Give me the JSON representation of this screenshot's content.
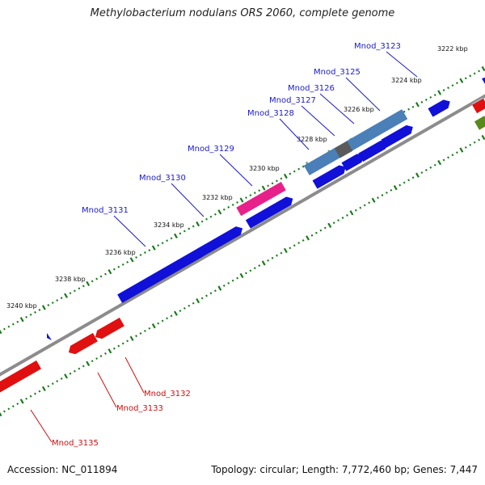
{
  "title": "Methylobacterium nodulans ORS 2060, complete genome",
  "footer": {
    "accession": "Accession: NC_011894",
    "summary": "Topology: circular; Length: 7,772,460 bp; Genes: 7,447"
  },
  "colors": {
    "forward_cds": "#1010d8",
    "reverse_cds": "#e01010",
    "rna": "#e8208a",
    "highlight": "#4a7fb8",
    "tick": "#1a7a1a",
    "backbone": "#8c8c8c",
    "forward_label": "#1a1acc",
    "reverse_label": "#cc1010"
  },
  "kbp_ticks": [
    {
      "label": "3222 kbp"
    },
    {
      "label": "3224 kbp"
    },
    {
      "label": "3226 kbp"
    },
    {
      "label": "3228 kbp"
    },
    {
      "label": "3230 kbp"
    },
    {
      "label": "3232 kbp"
    },
    {
      "label": "3234 kbp"
    },
    {
      "label": "3236 kbp"
    },
    {
      "label": "3238 kbp"
    },
    {
      "label": "3240 kbp"
    }
  ],
  "forward_genes": [
    {
      "label": "Mnod_3123"
    },
    {
      "label": "Mnod_3125"
    },
    {
      "label": "Mnod_3126"
    },
    {
      "label": "Mnod_3127"
    },
    {
      "label": "Mnod_3128"
    },
    {
      "label": "Mnod_3129"
    },
    {
      "label": "Mnod_3130"
    },
    {
      "label": "Mnod_3131"
    }
  ],
  "reverse_genes": [
    {
      "label": "Mnod_3132"
    },
    {
      "label": "Mnod_3133"
    },
    {
      "label": "Mnod_3135"
    }
  ]
}
